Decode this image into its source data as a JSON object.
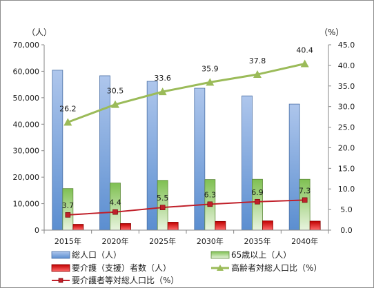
{
  "chart_data": {
    "type": "bar+line",
    "categories": [
      "2015年",
      "2020年",
      "2025年",
      "2030年",
      "2035年",
      "2040年"
    ],
    "left_axis": {
      "unit_label": "（人）",
      "ylim": [
        0,
        70000
      ],
      "ticks": [
        "0",
        "10,000",
        "20,000",
        "30,000",
        "40,000",
        "50,000",
        "60,000",
        "70,000"
      ]
    },
    "right_axis": {
      "unit_label": "（%）",
      "ylim": [
        0,
        45
      ],
      "ticks": [
        "0.0",
        "5.0",
        "10.0",
        "15.0",
        "20.0",
        "25.0",
        "30.0",
        "35.0",
        "40.0",
        "45.0"
      ]
    },
    "series": [
      {
        "name": "総人口（人）",
        "type": "bar",
        "axis": "left",
        "values": [
          60400,
          58300,
          56200,
          53600,
          50700,
          47600
        ],
        "color": "#8fb0e0"
      },
      {
        "name": "65歳以上（人）",
        "type": "bar",
        "axis": "left",
        "values": [
          15700,
          17800,
          18800,
          19100,
          19200,
          19200
        ],
        "color": "#9bcf6e"
      },
      {
        "name": "要介護（支援）者数（人）",
        "type": "bar",
        "axis": "left",
        "values": [
          2200,
          2500,
          3000,
          3300,
          3500,
          3400
        ],
        "color": "#e02020"
      },
      {
        "name": "高齢者対総人口比（%）",
        "type": "line",
        "axis": "right",
        "values": [
          26.2,
          30.5,
          33.6,
          35.9,
          37.8,
          40.4
        ],
        "labels": [
          "26.2",
          "30.5",
          "33.6",
          "35.9",
          "37.8",
          "40.4"
        ],
        "color": "#9bbb59",
        "marker": "triangle"
      },
      {
        "name": "要介護者等対総人口比（%）",
        "type": "line",
        "axis": "right",
        "values": [
          3.7,
          4.4,
          5.5,
          6.3,
          6.9,
          7.3
        ],
        "labels": [
          "3.7",
          "4.4",
          "5.5",
          "6.3",
          "6.9",
          "7.3"
        ],
        "color": "#c0202a",
        "marker": "square"
      }
    ],
    "legend": {
      "placement": "bottom"
    },
    "grid": false
  }
}
